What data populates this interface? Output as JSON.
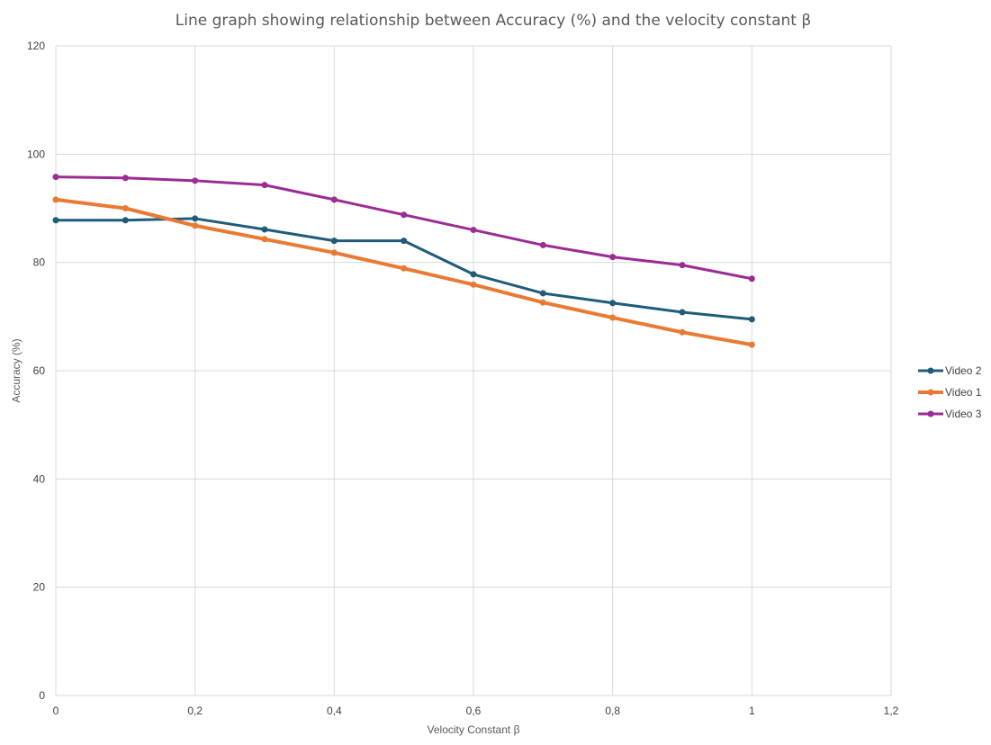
{
  "chart_data": {
    "type": "line",
    "title": "Line graph showing relationship between Accuracy (%) and the velocity constant β",
    "xlabel": "Velocity Constant β",
    "ylabel": "Accuracy (%)",
    "xlim": [
      0,
      1.2
    ],
    "ylim": [
      0,
      120
    ],
    "x_ticks": [
      0,
      0.2,
      0.4,
      0.6,
      0.8,
      1,
      1.2
    ],
    "x_tick_labels": [
      "0",
      "0,2",
      "0,4",
      "0,6",
      "0,8",
      "1",
      "1,2"
    ],
    "y_ticks": [
      0,
      20,
      40,
      60,
      80,
      100,
      120
    ],
    "y_tick_labels": [
      "0",
      "20",
      "40",
      "60",
      "80",
      "100",
      "120"
    ],
    "grid": true,
    "legend_position": "right",
    "x": [
      0,
      0.1,
      0.2,
      0.3,
      0.4,
      0.5,
      0.6,
      0.7,
      0.8,
      0.9,
      1
    ],
    "series": [
      {
        "name": "Video 2",
        "color": "#1f5c7a",
        "values": [
          87.8,
          87.8,
          88.1,
          86.1,
          84.0,
          84.0,
          77.8,
          74.3,
          72.5,
          70.8,
          69.5
        ]
      },
      {
        "name": "Video 1",
        "color": "#e97a34",
        "values": [
          91.6,
          90.0,
          86.8,
          84.3,
          81.8,
          78.9,
          75.9,
          72.6,
          69.8,
          67.1,
          64.8
        ]
      },
      {
        "name": "Video 3",
        "color": "#9b2c94",
        "values": [
          95.8,
          95.6,
          95.1,
          94.3,
          91.6,
          88.8,
          86.0,
          83.2,
          81.0,
          79.5,
          77.0
        ]
      }
    ]
  }
}
